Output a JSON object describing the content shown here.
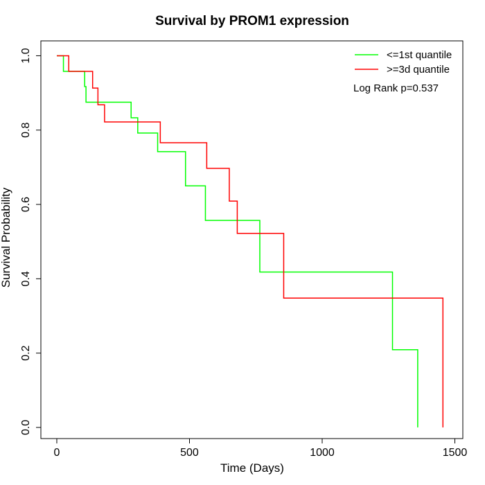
{
  "chart_data": {
    "type": "line",
    "step": true,
    "title": "Survival by PROM1 expression",
    "xlabel": "Time (Days)",
    "ylabel": "Survival Probability",
    "xlim": [
      -60,
      1530
    ],
    "ylim": [
      -0.03,
      1.04
    ],
    "xticks": [
      0,
      500,
      1000,
      1500
    ],
    "xtick_labels": [
      "0",
      "500",
      "1000",
      "1500"
    ],
    "yticks": [
      0.0,
      0.2,
      0.4,
      0.6,
      0.8,
      1.0
    ],
    "ytick_labels": [
      "0.0",
      "0.2",
      "0.4",
      "0.6",
      "0.8",
      "1.0"
    ],
    "grid": false,
    "legend_position": "top-right",
    "annotation": "Log Rank p=0.537",
    "series": [
      {
        "name": "<=1st quantile",
        "color": "#00ff00",
        "points": [
          [
            0,
            1.0
          ],
          [
            25,
            0.958
          ],
          [
            105,
            0.917
          ],
          [
            110,
            0.875
          ],
          [
            280,
            0.833
          ],
          [
            305,
            0.792
          ],
          [
            380,
            0.742
          ],
          [
            485,
            0.65
          ],
          [
            560,
            0.557
          ],
          [
            765,
            0.418
          ],
          [
            1265,
            0.209
          ],
          [
            1360,
            0.0
          ]
        ]
      },
      {
        "name": ">=3d quantile",
        "color": "#ff0000",
        "points": [
          [
            0,
            1.0
          ],
          [
            45,
            0.958
          ],
          [
            135,
            0.913
          ],
          [
            155,
            0.868
          ],
          [
            180,
            0.822
          ],
          [
            390,
            0.766
          ],
          [
            565,
            0.697
          ],
          [
            650,
            0.609
          ],
          [
            680,
            0.522
          ],
          [
            855,
            0.348
          ],
          [
            1455,
            0.0
          ]
        ]
      }
    ]
  }
}
